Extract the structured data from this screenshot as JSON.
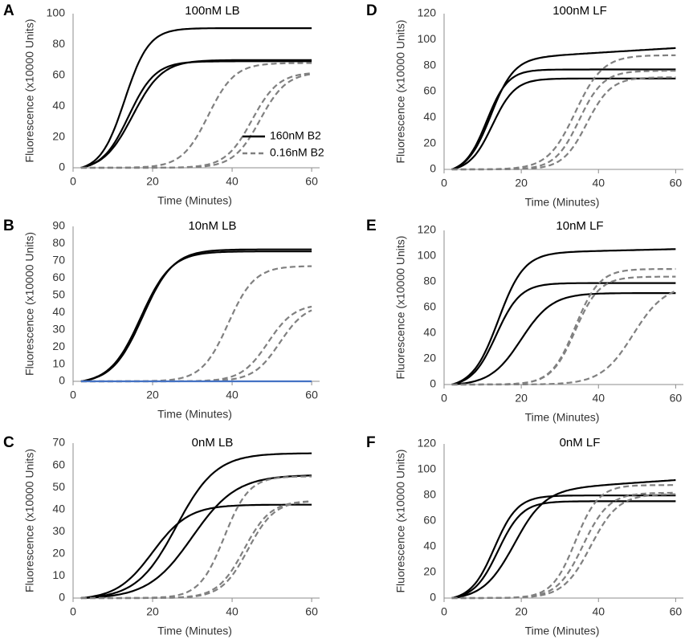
{
  "colors": {
    "solid": "#000000",
    "dashed": "#808080",
    "baseline": "#4472C4",
    "axis": "#8c8c8c"
  },
  "legend": {
    "solid_label": "160nM B2",
    "dashed_label": "0.16nM B2"
  },
  "chart_data": [
    {
      "panel": "A",
      "type": "line",
      "title": "100nM LB",
      "xlabel": "Time (Minutes)",
      "ylabel": "Fluorescence (x10000 Units)",
      "xlim": [
        0,
        62
      ],
      "ylim": [
        0,
        100
      ],
      "xticks": [
        0,
        20,
        40,
        60
      ],
      "yticks": [
        0,
        20,
        40,
        60,
        80,
        100
      ],
      "legend_position": "right",
      "series": [
        {
          "name": "160nM B2 rep1",
          "style": "solid",
          "plateau": 93,
          "midpoint": 13,
          "rate": 0.33
        },
        {
          "name": "160nM B2 rep2",
          "style": "solid",
          "plateau": 71,
          "midpoint": 14,
          "rate": 0.3
        },
        {
          "name": "160nM B2 rep3",
          "style": "solid",
          "plateau": 72,
          "midpoint": 15,
          "rate": 0.27
        },
        {
          "name": "0.16nM B2 rep1",
          "style": "dashed",
          "plateau": 68,
          "midpoint": 34,
          "rate": 0.3
        },
        {
          "name": "0.16nM B2 rep2",
          "style": "dashed",
          "plateau": 62,
          "midpoint": 45,
          "rate": 0.3
        },
        {
          "name": "0.16nM B2 rep3",
          "style": "dashed",
          "plateau": 62,
          "midpoint": 47,
          "rate": 0.3
        }
      ]
    },
    {
      "panel": "B",
      "type": "line",
      "title": "10nM LB",
      "xlabel": "Time (Minutes)",
      "ylabel": "Fluorescence (x10000 Units)",
      "xlim": [
        0,
        62
      ],
      "ylim": [
        0,
        90
      ],
      "xticks": [
        0,
        20,
        40,
        60
      ],
      "yticks": [
        0,
        10,
        20,
        30,
        40,
        50,
        60,
        70,
        80,
        90
      ],
      "series": [
        {
          "name": "160nM B2 rep1",
          "style": "solid",
          "plateau": 77,
          "midpoint": 17,
          "rate": 0.26
        },
        {
          "name": "160nM B2 rep2",
          "style": "solid",
          "plateau": 78,
          "midpoint": 17.5,
          "rate": 0.26
        },
        {
          "name": "0.16nM B2 rep1",
          "style": "dashed",
          "plateau": 67,
          "midpoint": 39,
          "rate": 0.3
        },
        {
          "name": "0.16nM B2 rep2",
          "style": "dashed",
          "plateau": 45,
          "midpoint": 49,
          "rate": 0.3
        },
        {
          "name": "0.16nM B2 rep3",
          "style": "dashed",
          "plateau": 45,
          "midpoint": 52,
          "rate": 0.3
        },
        {
          "name": "baseline",
          "style": "baseline",
          "plateau": 0,
          "midpoint": 0,
          "rate": 0
        }
      ]
    },
    {
      "panel": "C",
      "type": "line",
      "title": "0nM LB",
      "xlabel": "Time (Minutes)",
      "ylabel": "Fluorescence (x10000 Units)",
      "xlim": [
        0,
        62
      ],
      "ylim": [
        0,
        70
      ],
      "xticks": [
        0,
        20,
        40,
        60
      ],
      "yticks": [
        0,
        10,
        20,
        30,
        40,
        50,
        60,
        70
      ],
      "series": [
        {
          "name": "160nM B2 rep1",
          "style": "solid",
          "plateau": 43,
          "midpoint": 20,
          "rate": 0.22
        },
        {
          "name": "160nM B2 rep2",
          "style": "solid",
          "plateau": 66,
          "midpoint": 26,
          "rate": 0.2
        },
        {
          "name": "160nM B2 rep3",
          "style": "solid",
          "plateau": 56,
          "midpoint": 30,
          "rate": 0.18
        },
        {
          "name": "0.16nM B2 rep1",
          "style": "dashed",
          "plateau": 55,
          "midpoint": 38,
          "rate": 0.32
        },
        {
          "name": "0.16nM B2 rep2",
          "style": "dashed",
          "plateau": 44,
          "midpoint": 43,
          "rate": 0.3
        },
        {
          "name": "0.16nM B2 rep3",
          "style": "dashed",
          "plateau": 44,
          "midpoint": 44,
          "rate": 0.3
        }
      ]
    },
    {
      "panel": "D",
      "type": "line",
      "title": "100nM LF",
      "xlabel": "Time (Minutes)",
      "ylabel": "Fluorescence (x10000 Units)",
      "xlim": [
        0,
        62
      ],
      "ylim": [
        0,
        120
      ],
      "xticks": [
        0,
        20,
        40,
        60
      ],
      "yticks": [
        0,
        20,
        40,
        60,
        80,
        100,
        120
      ],
      "series": [
        {
          "name": "160nM B2 rep1",
          "style": "solid",
          "plateau": 80,
          "midpoint": 11,
          "rate": 0.36
        },
        {
          "name": "160nM B2 rep2",
          "style": "solid",
          "plateau": 88,
          "midpoint": 12,
          "rate": 0.33,
          "drift": 0.18
        },
        {
          "name": "160nM B2 rep3",
          "style": "solid",
          "plateau": 72,
          "midpoint": 12.5,
          "rate": 0.34
        },
        {
          "name": "0.16nM B2 rep1",
          "style": "dashed",
          "plateau": 88,
          "midpoint": 34,
          "rate": 0.28
        },
        {
          "name": "0.16nM B2 rep2",
          "style": "dashed",
          "plateau": 76,
          "midpoint": 35,
          "rate": 0.32
        },
        {
          "name": "0.16nM B2 rep3",
          "style": "dashed",
          "plateau": 71,
          "midpoint": 37,
          "rate": 0.32
        }
      ]
    },
    {
      "panel": "E",
      "type": "line",
      "title": "10nM LF",
      "xlabel": "Time (Minutes)",
      "ylabel": "Fluorescence (x10000 Units)",
      "xlim": [
        0,
        62
      ],
      "ylim": [
        0,
        120
      ],
      "xticks": [
        0,
        20,
        40,
        60
      ],
      "yticks": [
        0,
        20,
        40,
        60,
        80,
        100,
        120
      ],
      "series": [
        {
          "name": "160nM B2 rep1",
          "style": "solid",
          "plateau": 105,
          "midpoint": 14,
          "rate": 0.3,
          "drift": 0.07
        },
        {
          "name": "160nM B2 rep2",
          "style": "solid",
          "plateau": 81,
          "midpoint": 13.5,
          "rate": 0.32
        },
        {
          "name": "160nM B2 rep3",
          "style": "solid",
          "plateau": 72,
          "midpoint": 20,
          "rate": 0.25
        },
        {
          "name": "0.16nM B2 rep1",
          "style": "dashed",
          "plateau": 90,
          "midpoint": 34,
          "rate": 0.32
        },
        {
          "name": "0.16nM B2 rep2",
          "style": "dashed",
          "plateau": 84,
          "midpoint": 34,
          "rate": 0.32
        },
        {
          "name": "0.16nM B2 rep3",
          "style": "dashed",
          "plateau": 78,
          "midpoint": 49,
          "rate": 0.24
        }
      ]
    },
    {
      "panel": "F",
      "type": "line",
      "title": "0nM LF",
      "xlabel": "Time (Minutes)",
      "ylabel": "Fluorescence (x10000 Units)",
      "xlim": [
        0,
        62
      ],
      "ylim": [
        0,
        120
      ],
      "xticks": [
        0,
        20,
        40,
        60
      ],
      "yticks": [
        0,
        20,
        40,
        60,
        80,
        100,
        120
      ],
      "series": [
        {
          "name": "160nM B2 rep1",
          "style": "solid",
          "plateau": 82,
          "midpoint": 13,
          "rate": 0.33
        },
        {
          "name": "160nM B2 rep2",
          "style": "solid",
          "plateau": 77,
          "midpoint": 14,
          "rate": 0.32
        },
        {
          "name": "160nM B2 rep3",
          "style": "solid",
          "plateau": 85,
          "midpoint": 18,
          "rate": 0.25,
          "drift": 0.2
        },
        {
          "name": "0.16nM B2 rep1",
          "style": "dashed",
          "plateau": 88,
          "midpoint": 34,
          "rate": 0.33
        },
        {
          "name": "0.16nM B2 rep2",
          "style": "dashed",
          "plateau": 82,
          "midpoint": 36,
          "rate": 0.3
        },
        {
          "name": "0.16nM B2 rep3",
          "style": "dashed",
          "plateau": 81,
          "midpoint": 38,
          "rate": 0.28
        }
      ]
    }
  ]
}
